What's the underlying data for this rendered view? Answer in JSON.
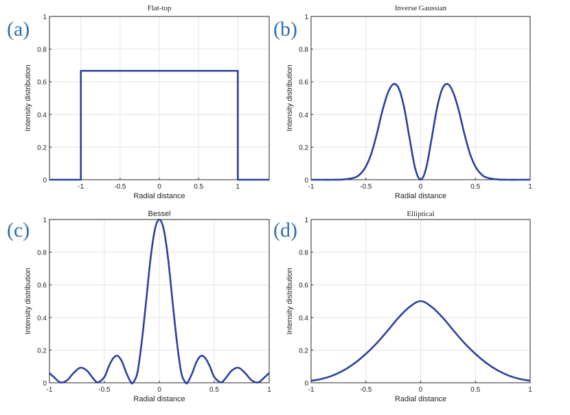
{
  "chart_data": [
    {
      "panel": "(a)",
      "title": "Flat-top",
      "type": "line",
      "xlabel": "Radial distance",
      "ylabel": "Intensity distribution",
      "xlim": [
        -1.4,
        1.4
      ],
      "ylim": [
        0,
        1
      ],
      "xticks": [
        "-1",
        "-0.5",
        "0",
        "0.5",
        "1"
      ],
      "yticks": [
        "0",
        "0.2",
        "0.4",
        "0.6",
        "0.8",
        "1"
      ],
      "grid": true,
      "series": [
        {
          "x": [
            -1.4,
            -1.0,
            -1.0,
            1.0,
            1.0,
            1.4
          ],
          "y": [
            0,
            0,
            0.667,
            0.667,
            0,
            0
          ]
        }
      ]
    },
    {
      "panel": "(b)",
      "title": "Inverse Gaussian",
      "type": "line",
      "xlabel": "Radial distance",
      "ylabel": "Intensity distribution",
      "xlim": [
        -1,
        1
      ],
      "ylim": [
        0,
        1
      ],
      "xticks": [
        "-1",
        "-0.5",
        "0",
        "0.5",
        "1"
      ],
      "yticks": [
        "0",
        "0.2",
        "0.4",
        "0.6",
        "0.8",
        "1"
      ],
      "grid": true,
      "series": [
        {
          "x": [
            -1.0,
            -0.9,
            -0.8,
            -0.7,
            -0.6,
            -0.55,
            -0.5,
            -0.45,
            -0.4,
            -0.35,
            -0.3,
            -0.25,
            -0.2,
            -0.15,
            -0.1,
            -0.05,
            0,
            0.05,
            0.1,
            0.15,
            0.2,
            0.25,
            0.3,
            0.35,
            0.4,
            0.45,
            0.5,
            0.55,
            0.6,
            0.7,
            0.8,
            0.9,
            1.0
          ],
          "y": [
            0.0,
            0.0,
            0.0,
            0.002,
            0.014,
            0.036,
            0.081,
            0.16,
            0.28,
            0.42,
            0.53,
            0.585,
            0.56,
            0.44,
            0.25,
            0.07,
            0.0,
            0.07,
            0.25,
            0.44,
            0.56,
            0.585,
            0.53,
            0.42,
            0.28,
            0.16,
            0.081,
            0.036,
            0.014,
            0.002,
            0.0,
            0.0,
            0.0
          ]
        }
      ]
    },
    {
      "panel": "(c)",
      "title": "Bessel",
      "type": "line",
      "xlabel": "Radial distance",
      "ylabel": "Intensity distribution",
      "xlim": [
        -1,
        1
      ],
      "ylim": [
        0,
        1
      ],
      "xticks": [
        "-1",
        "-0.5",
        "0",
        "0.5",
        "1"
      ],
      "yticks": [
        "0",
        "0.2",
        "0.4",
        "0.6",
        "0.8",
        "1"
      ],
      "grid": true,
      "series": [
        {
          "x": [
            -1.0,
            -0.96,
            -0.9,
            -0.84,
            -0.78,
            -0.72,
            -0.66,
            -0.6,
            -0.56,
            -0.5,
            -0.46,
            -0.42,
            -0.38,
            -0.34,
            -0.3,
            -0.26,
            -0.24,
            -0.2,
            -0.16,
            -0.12,
            -0.08,
            -0.04,
            0,
            0.04,
            0.08,
            0.12,
            0.16,
            0.2,
            0.24,
            0.26,
            0.3,
            0.34,
            0.38,
            0.42,
            0.46,
            0.5,
            0.56,
            0.6,
            0.66,
            0.72,
            0.78,
            0.84,
            0.9,
            0.96,
            1.0
          ],
          "y": [
            0.06,
            0.035,
            0.002,
            0.015,
            0.06,
            0.092,
            0.075,
            0.025,
            0.002,
            0.035,
            0.1,
            0.15,
            0.165,
            0.13,
            0.06,
            0.005,
            0.0,
            0.06,
            0.25,
            0.5,
            0.76,
            0.94,
            1.0,
            0.94,
            0.76,
            0.5,
            0.25,
            0.06,
            0.0,
            0.005,
            0.06,
            0.13,
            0.165,
            0.15,
            0.1,
            0.035,
            0.002,
            0.025,
            0.075,
            0.092,
            0.06,
            0.015,
            0.002,
            0.035,
            0.06
          ]
        }
      ]
    },
    {
      "panel": "(d)",
      "title": "Elliptical",
      "type": "line",
      "xlabel": "Radial distance",
      "ylabel": "Intensity distribution",
      "xlim": [
        -1,
        1
      ],
      "ylim": [
        0,
        1
      ],
      "xticks": [
        "-1",
        "-0.5",
        "0",
        "0.5",
        "1"
      ],
      "yticks": [
        "0",
        "0.2",
        "0.4",
        "0.6",
        "0.8",
        "1"
      ],
      "grid": true,
      "series": [
        {
          "x": [
            -1.0,
            -0.9,
            -0.8,
            -0.7,
            -0.6,
            -0.5,
            -0.4,
            -0.3,
            -0.2,
            -0.1,
            0,
            0.1,
            0.2,
            0.3,
            0.4,
            0.5,
            0.6,
            0.7,
            0.8,
            0.9,
            1.0
          ],
          "y": [
            0.012,
            0.024,
            0.045,
            0.077,
            0.121,
            0.177,
            0.243,
            0.32,
            0.4,
            0.465,
            0.5,
            0.465,
            0.4,
            0.32,
            0.243,
            0.177,
            0.121,
            0.077,
            0.045,
            0.024,
            0.012
          ]
        }
      ]
    }
  ]
}
